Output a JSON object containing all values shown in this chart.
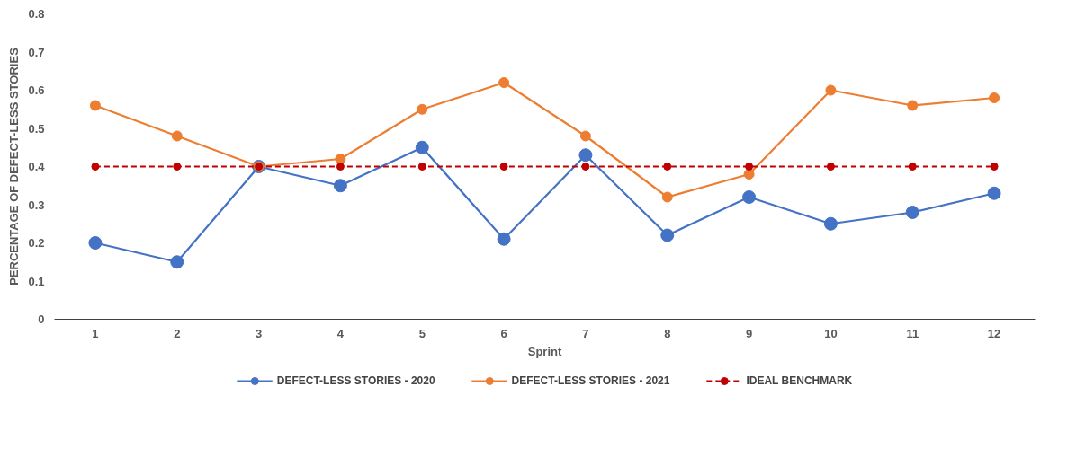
{
  "chart_data": {
    "type": "line",
    "xlabel": "Sprint",
    "ylabel": "PERCENTAGE OF DEFECT-LESS STORIES",
    "categories": [
      "1",
      "2",
      "3",
      "4",
      "5",
      "6",
      "7",
      "8",
      "9",
      "10",
      "11",
      "12"
    ],
    "series": [
      {
        "name": "DEFECT-LESS STORIES - 2020",
        "color": "#4472c4",
        "values": [
          0.2,
          0.15,
          0.4,
          0.35,
          0.45,
          0.21,
          0.43,
          0.22,
          0.32,
          0.25,
          0.28,
          0.33
        ]
      },
      {
        "name": "DEFECT-LESS STORIES - 2021",
        "color": "#ed7d31",
        "values": [
          0.56,
          0.48,
          0.4,
          0.42,
          0.55,
          0.62,
          0.48,
          0.32,
          0.38,
          0.6,
          0.56,
          0.58
        ]
      },
      {
        "name": "IDEAL BENCHMARK",
        "color": "#c00000",
        "line_style": "dashed",
        "values": [
          0.4,
          0.4,
          0.4,
          0.4,
          0.4,
          0.4,
          0.4,
          0.4,
          0.4,
          0.4,
          0.4,
          0.4
        ]
      }
    ],
    "ylim": [
      0,
      0.8
    ],
    "yticks": [
      0,
      0.1,
      0.2,
      0.3,
      0.4,
      0.5,
      0.6,
      0.7,
      0.8
    ],
    "grid": false,
    "legend": "bottom",
    "marker": "circle",
    "line_style": "solid"
  }
}
